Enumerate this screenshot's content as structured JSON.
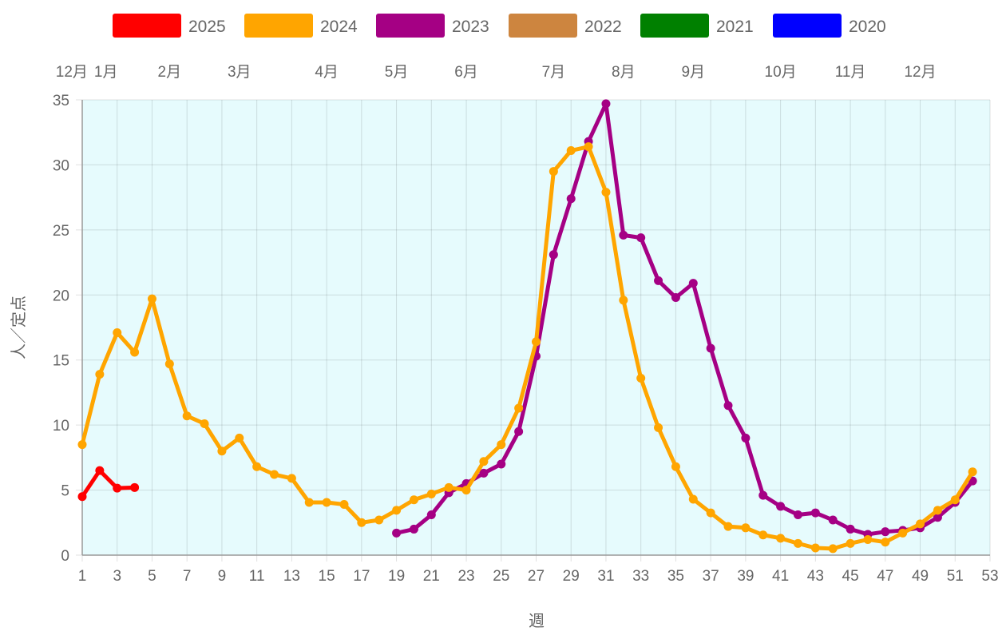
{
  "chart_data": {
    "type": "line",
    "xlabel": "週",
    "ylabel": "人／定点",
    "xlim": [
      1,
      53
    ],
    "ylim": [
      0,
      35
    ],
    "x_ticks": [
      1,
      3,
      5,
      7,
      9,
      11,
      13,
      15,
      17,
      19,
      21,
      23,
      25,
      27,
      29,
      31,
      33,
      35,
      37,
      39,
      41,
      43,
      45,
      47,
      49,
      51,
      53
    ],
    "y_ticks": [
      0,
      5,
      10,
      15,
      20,
      25,
      30,
      35
    ],
    "grid": true,
    "legend_position": "top",
    "plot_background": "#e6fbfd",
    "month_labels": [
      {
        "label": "12月",
        "week": 1
      },
      {
        "label": "1月",
        "week": 2
      },
      {
        "label": "2月",
        "week": 6
      },
      {
        "label": "3月",
        "week": 10
      },
      {
        "label": "4月",
        "week": 15
      },
      {
        "label": "5月",
        "week": 19
      },
      {
        "label": "6月",
        "week": 23
      },
      {
        "label": "7月",
        "week": 28
      },
      {
        "label": "8月",
        "week": 32
      },
      {
        "label": "9月",
        "week": 36
      },
      {
        "label": "10月",
        "week": 41
      },
      {
        "label": "11月",
        "week": 45
      },
      {
        "label": "12月",
        "week": 49
      }
    ],
    "series": [
      {
        "name": "2025",
        "color": "#ff0000",
        "start_week": 1,
        "values": [
          4.5,
          6.5,
          5.15,
          5.2
        ]
      },
      {
        "name": "2024",
        "color": "#ffa500",
        "start_week": 1,
        "values": [
          8.5,
          13.9,
          17.1,
          15.6,
          19.7,
          14.7,
          10.7,
          10.1,
          8.0,
          9.0,
          6.8,
          6.2,
          5.9,
          4.05,
          4.05,
          3.9,
          2.5,
          2.7,
          3.45,
          4.25,
          4.7,
          5.2,
          5.0,
          7.2,
          8.5,
          11.3,
          16.4,
          29.5,
          31.1,
          31.4,
          27.9,
          19.6,
          13.6,
          9.8,
          6.8,
          4.3,
          3.25,
          2.2,
          2.1,
          1.55,
          1.3,
          0.9,
          0.55,
          0.5,
          0.9,
          1.2,
          1.0,
          1.7,
          2.4,
          3.45,
          4.25,
          6.4
        ]
      },
      {
        "name": "2023",
        "color": "#a50084",
        "start_week": 19,
        "values": [
          1.7,
          2.0,
          3.1,
          4.8,
          5.5,
          6.3,
          7.0,
          9.5,
          15.3,
          23.1,
          27.4,
          31.8,
          34.7,
          24.6,
          24.4,
          21.1,
          19.8,
          20.9,
          15.9,
          11.5,
          9.0,
          4.6,
          3.75,
          3.1,
          3.25,
          2.7,
          2.0,
          1.6,
          1.8,
          1.9,
          2.1,
          2.9,
          4.05,
          5.7
        ]
      },
      {
        "name": "2022",
        "color": "#cd853f",
        "start_week": 1,
        "values": []
      },
      {
        "name": "2021",
        "color": "#008000",
        "start_week": 1,
        "values": []
      },
      {
        "name": "2020",
        "color": "#0000ff",
        "start_week": 1,
        "values": []
      }
    ]
  }
}
